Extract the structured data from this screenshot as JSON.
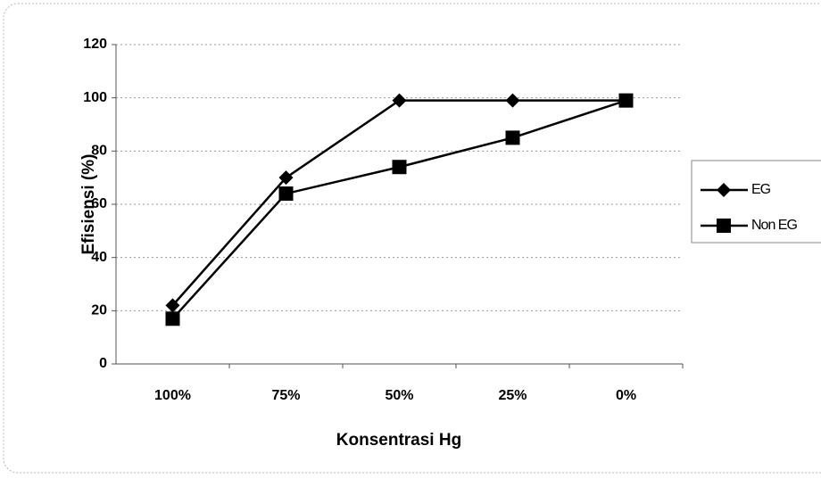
{
  "chart_data": {
    "type": "line",
    "categories": [
      "100%",
      "75%",
      "50%",
      "25%",
      "0%"
    ],
    "series": [
      {
        "name": "EG",
        "color": "#000000",
        "marker": "diamond",
        "values": [
          22,
          70,
          99,
          99,
          99
        ]
      },
      {
        "name": "Non EG",
        "color": "#000000",
        "marker": "square",
        "values": [
          17,
          64,
          74,
          85,
          99
        ]
      }
    ],
    "ylim": [
      0,
      120
    ],
    "yticks": [
      0,
      20,
      40,
      60,
      80,
      100,
      120
    ],
    "xlabel": "Konsentrasi Hg",
    "ylabel": "Efisiensi (%)",
    "grid": true,
    "legend": "right"
  }
}
